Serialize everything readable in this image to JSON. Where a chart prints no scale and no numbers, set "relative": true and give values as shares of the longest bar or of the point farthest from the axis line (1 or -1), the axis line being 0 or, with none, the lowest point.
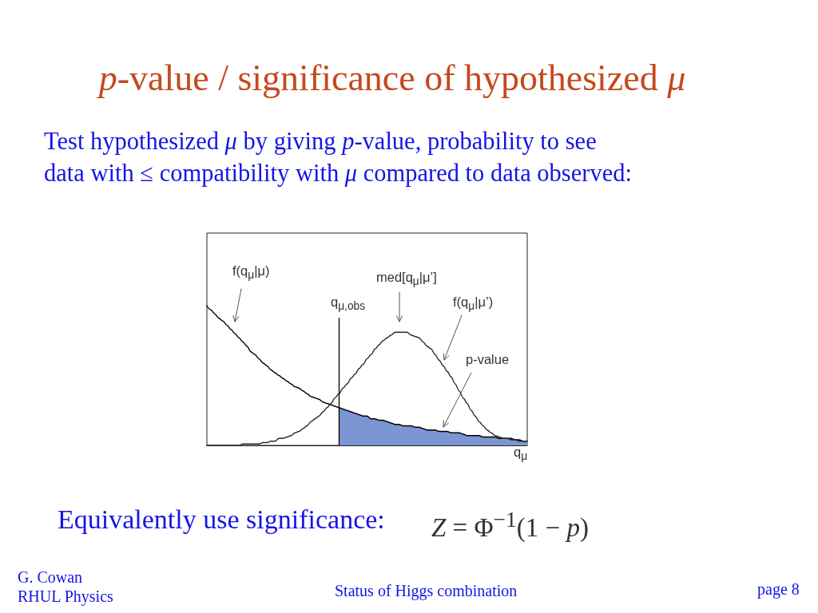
{
  "chart_data": {
    "type": "line",
    "title": "p-value / significance of hypothesized μ",
    "subtitle": "Test hypothesized μ by giving p-value, probability to see data with ≤ compatibility with μ compared to data observed:",
    "xlabel": "q$_{μ}$",
    "relative": true,
    "marker": "none",
    "line_style": "solid",
    "categories": [
      null,
      null,
      null,
      null,
      null,
      null,
      null,
      null,
      null,
      null,
      null,
      null,
      null,
      null,
      null,
      null,
      null,
      null,
      null,
      null,
      null,
      null,
      null,
      null,
      null,
      null,
      null,
      null,
      null,
      null,
      null,
      null,
      null,
      null,
      null,
      null,
      null,
      null,
      null,
      null,
      null,
      null,
      null,
      null,
      null,
      null,
      null,
      null,
      null,
      null,
      null,
      null,
      null,
      null,
      null,
      null,
      null,
      null,
      null,
      null,
      null,
      null,
      null,
      null,
      null,
      null,
      null,
      null,
      null,
      null,
      null,
      null,
      null,
      null,
      null,
      null,
      null,
      null,
      null,
      null,
      null
    ],
    "series": [
      {
        "name": "f(q$_{μ}$|μ)",
        "color": "#000000",
        "values": [
          1.0,
          0.97,
          0.94,
          0.91,
          0.89,
          0.86,
          0.83,
          0.8,
          0.77,
          0.74,
          0.71,
          0.67,
          0.65,
          0.62,
          0.59,
          0.57,
          0.54,
          0.52,
          0.5,
          0.48,
          0.46,
          0.44,
          0.42,
          0.41,
          0.39,
          0.37,
          0.35,
          0.34,
          0.33,
          0.31,
          0.3,
          0.29,
          0.28,
          0.27,
          0.26,
          0.25,
          0.24,
          0.23,
          0.22,
          0.21,
          0.21,
          0.19,
          0.19,
          0.18,
          0.18,
          0.17,
          0.16,
          0.15,
          0.15,
          0.14,
          0.14,
          0.14,
          0.13,
          0.13,
          0.12,
          0.11,
          0.11,
          0.11,
          0.1,
          0.1,
          0.1,
          0.09,
          0.09,
          0.09,
          0.08,
          0.07,
          0.07,
          0.07,
          0.07,
          0.06,
          0.06,
          0.06,
          0.06,
          0.05,
          0.05,
          0.05,
          0.05,
          0.04,
          0.04,
          0.03,
          0.03
        ]
      },
      {
        "name": "f(q$_{μ}$|μ’)",
        "color": "#2a2a2a",
        "values": [
          0,
          0,
          0,
          0,
          0,
          0,
          0,
          0,
          0,
          0.01,
          0.01,
          0.01,
          0.01,
          0.01,
          0.02,
          0.02,
          0.03,
          0.03,
          0.05,
          0.05,
          0.06,
          0.07,
          0.09,
          0.1,
          0.12,
          0.14,
          0.17,
          0.19,
          0.21,
          0.24,
          0.27,
          0.3,
          0.34,
          0.37,
          0.41,
          0.44,
          0.48,
          0.51,
          0.55,
          0.58,
          0.62,
          0.65,
          0.69,
          0.72,
          0.75,
          0.77,
          0.79,
          0.81,
          0.81,
          0.81,
          0.81,
          0.79,
          0.78,
          0.77,
          0.74,
          0.71,
          0.69,
          0.65,
          0.61,
          0.57,
          0.53,
          0.49,
          0.44,
          0.39,
          0.34,
          0.3,
          0.25,
          0.21,
          0.17,
          0.14,
          0.11,
          0.09,
          0.07,
          0.06,
          0.05,
          0.05,
          0.04,
          0.04,
          0.03,
          0.03,
          0.03
        ]
      },
      {
        "name": "p-value",
        "type": "area",
        "color": "#7b96d2",
        "values": [
          null,
          null,
          null,
          null,
          null,
          null,
          null,
          null,
          null,
          null,
          null,
          null,
          null,
          null,
          null,
          null,
          null,
          null,
          null,
          null,
          null,
          null,
          null,
          null,
          null,
          null,
          null,
          null,
          null,
          null,
          null,
          null,
          null,
          0.27,
          0.26,
          0.25,
          0.24,
          0.23,
          0.22,
          0.21,
          0.21,
          0.19,
          0.19,
          0.18,
          0.18,
          0.17,
          0.16,
          0.15,
          0.15,
          0.14,
          0.14,
          0.14,
          0.13,
          0.13,
          0.12,
          0.11,
          0.11,
          0.11,
          0.1,
          0.1,
          0.1,
          0.09,
          0.09,
          0.09,
          0.08,
          0.07,
          0.07,
          0.07,
          0.07,
          0.06,
          0.06,
          0.06,
          0.06,
          0.05,
          0.05,
          0.05,
          0.05,
          0.04,
          0.04,
          0.03,
          0.03
        ]
      }
    ],
    "annotations": [
      "q$_{μ,obs}$",
      "med[q$_{μ}$|μ’]",
      "Equivalently use significance:",
      "Z = Φ$^{−1}$(1 − p)",
      "G. Cowan",
      "RHUL Physics",
      "Status of Higgs combination",
      "page 8"
    ]
  }
}
